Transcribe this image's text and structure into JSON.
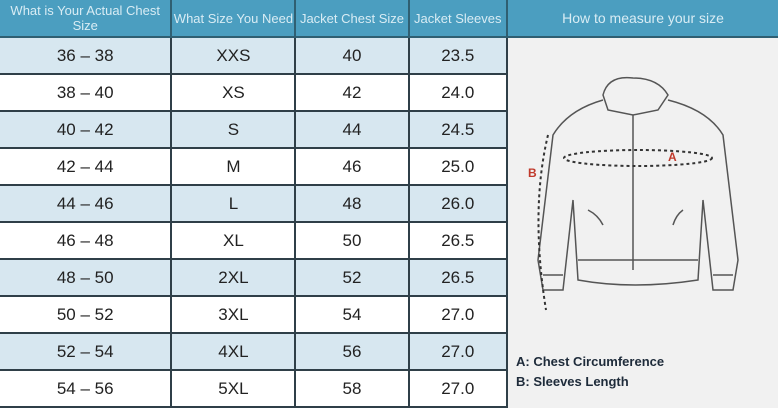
{
  "table": {
    "headers": [
      "What is Your Actual Chest Size",
      "What Size You Need",
      "Jacket Chest Size",
      "Jacket Sleeves"
    ],
    "rows": [
      [
        "36 – 38",
        "XXS",
        "40",
        "23.5"
      ],
      [
        "38 – 40",
        "XS",
        "42",
        "24.0"
      ],
      [
        "40 – 42",
        "S",
        "44",
        "24.5"
      ],
      [
        "42 – 44",
        "M",
        "46",
        "25.0"
      ],
      [
        "44 – 46",
        "L",
        "48",
        "26.0"
      ],
      [
        "46 – 48",
        "XL",
        "50",
        "26.5"
      ],
      [
        "48 – 50",
        "2XL",
        "52",
        "26.5"
      ],
      [
        "50 – 52",
        "3XL",
        "54",
        "27.0"
      ],
      [
        "52 – 54",
        "4XL",
        "56",
        "27.0"
      ],
      [
        "54 – 56",
        "5XL",
        "58",
        "27.0"
      ]
    ]
  },
  "panel": {
    "title": "How to measure your size",
    "marker_a": "A",
    "marker_b": "B",
    "legend_a": "A: Chest Circumference",
    "legend_b": "B: Sleeves Length"
  },
  "colors": {
    "header": "#4b9ec0",
    "row_alt": "#d7e7f0",
    "marker": "#c0392b"
  }
}
